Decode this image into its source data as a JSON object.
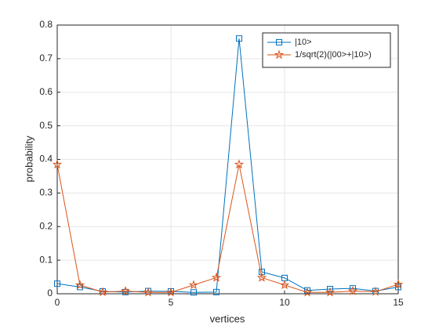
{
  "chart_data": {
    "type": "line",
    "xlabel": "vertices",
    "ylabel": "probability",
    "x": [
      0,
      1,
      2,
      3,
      4,
      5,
      6,
      7,
      8,
      9,
      10,
      11,
      12,
      13,
      14,
      15
    ],
    "series": [
      {
        "name": "|10>",
        "color": "#0072bd",
        "marker": "square",
        "values": [
          0.03,
          0.02,
          0.007,
          0.005,
          0.008,
          0.007,
          0.004,
          0.005,
          0.76,
          0.065,
          0.047,
          0.01,
          0.014,
          0.016,
          0.008,
          0.02
        ]
      },
      {
        "name": "1/sqrt(2)(|00>+|10>)",
        "color": "#d95319",
        "marker": "star",
        "values": [
          0.385,
          0.026,
          0.005,
          0.008,
          0.004,
          0.004,
          0.026,
          0.048,
          0.385,
          0.048,
          0.026,
          0.004,
          0.004,
          0.008,
          0.006,
          0.028
        ]
      }
    ],
    "xlim": [
      0,
      15
    ],
    "xticks": [
      0,
      5,
      10,
      15
    ],
    "ylim": [
      0,
      0.8
    ],
    "yticks": [
      0,
      0.1,
      0.2,
      0.3,
      0.4,
      0.5,
      0.6,
      0.7,
      0.8
    ],
    "grid": true,
    "legend": "northeast"
  }
}
